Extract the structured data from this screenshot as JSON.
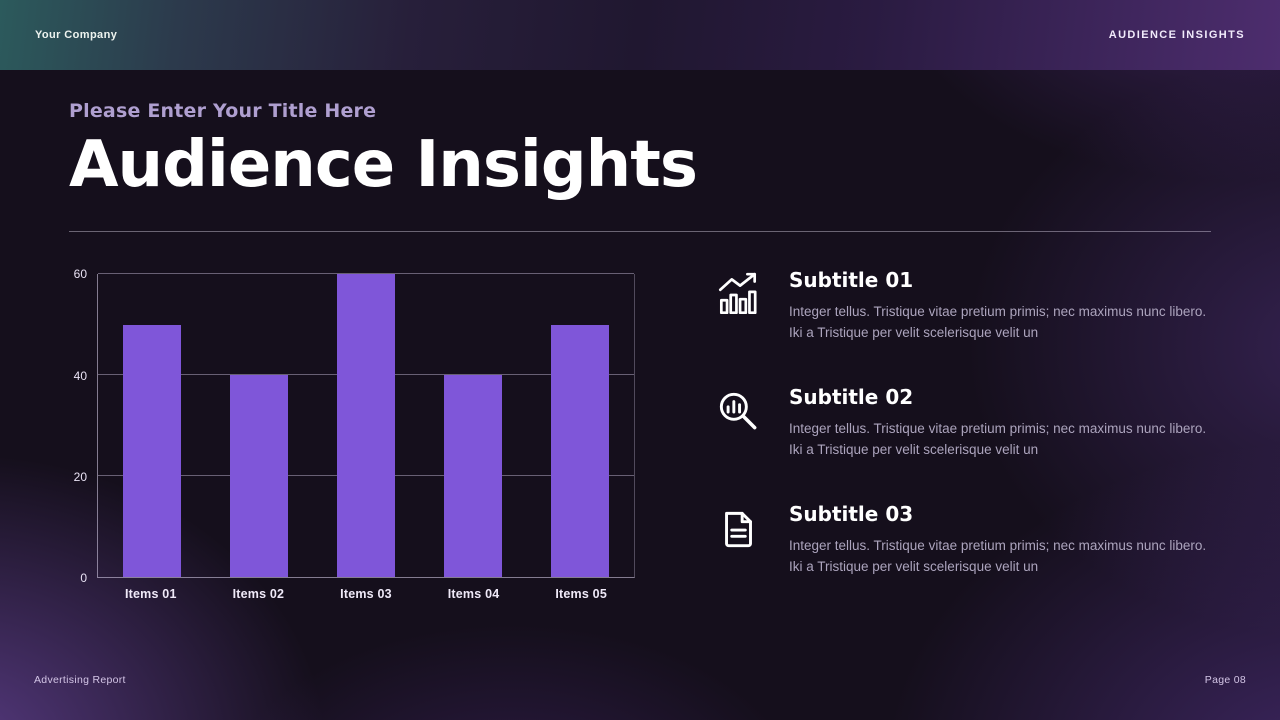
{
  "header": {
    "company": "Your Company",
    "slide_label": "AUDIENCE INSIGHTS"
  },
  "heading": {
    "eyebrow": "Please Enter Your Title Here",
    "title": "Audience Insights"
  },
  "chart_data": {
    "type": "bar",
    "categories": [
      "Items 01",
      "Items 02",
      "Items 03",
      "Items 04",
      "Items 05"
    ],
    "values": [
      50,
      40,
      60,
      40,
      50
    ],
    "title": "",
    "xlabel": "",
    "ylabel": "",
    "ylim": [
      0,
      60
    ],
    "yticks": [
      0,
      20,
      40,
      60
    ],
    "grid": true,
    "legend": false,
    "bar_color": "#7f56d9"
  },
  "features": [
    {
      "icon": "growth-chart-icon",
      "title": "Subtitle 01",
      "body": "Integer tellus. Tristique vitae pretium primis; nec maximus nunc libero. Iki a Tristique per velit scelerisque velit un"
    },
    {
      "icon": "search-analytics-icon",
      "title": "Subtitle 02",
      "body": "Integer tellus. Tristique vitae pretium primis; nec maximus nunc libero. Iki a Tristique per velit scelerisque velit un"
    },
    {
      "icon": "document-icon",
      "title": "Subtitle 03",
      "body": "Integer tellus. Tristique vitae pretium primis; nec maximus nunc libero. Iki a Tristique per velit scelerisque velit un"
    }
  ],
  "footer": {
    "report": "Advertising Report",
    "page": "Page 08"
  }
}
